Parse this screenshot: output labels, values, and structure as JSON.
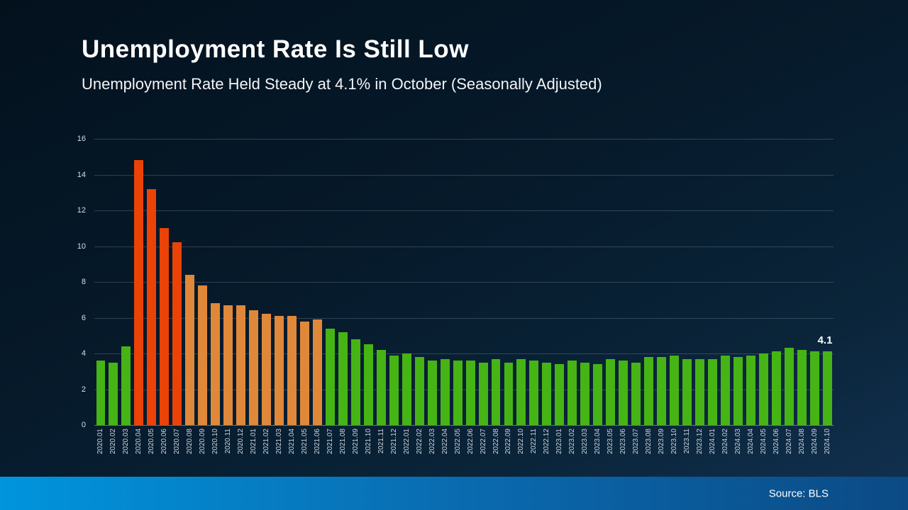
{
  "header": {
    "title": "Unemployment Rate Is Still Low",
    "subtitle": "Unemployment Rate Held Steady at 4.1% in October (Seasonally Adjusted)"
  },
  "footer": {
    "source": "Source: BLS"
  },
  "chart_data": {
    "type": "bar",
    "title": "Unemployment Rate Is Still Low",
    "subtitle": "Unemployment Rate Held Steady at 4.1% in October (Seasonally Adjusted)",
    "xlabel": "",
    "ylabel": "",
    "ylim": [
      0,
      16
    ],
    "yticks": [
      0,
      2,
      4,
      6,
      8,
      10,
      12,
      14,
      16
    ],
    "grid": true,
    "last_value_label": "4.1",
    "palette": {
      "green": "#46b414",
      "red": "#ea4207",
      "orange": "#e0883a"
    },
    "categories": [
      "2020.01",
      "2020.02",
      "2020.03",
      "2020.04",
      "2020.05",
      "2020.06",
      "2020.07",
      "2020.08",
      "2020.09",
      "2020.10",
      "2020.11",
      "2020.12",
      "2021.01",
      "2021.02",
      "2021.03",
      "2021.04",
      "2021.05",
      "2021.06",
      "2021.07",
      "2021.08",
      "2021.09",
      "2021.10",
      "2021.11",
      "2021.12",
      "2022.01",
      "2022.02",
      "2022.03",
      "2022.04",
      "2022.05",
      "2022.06",
      "2022.07",
      "2022.08",
      "2022.09",
      "2022.10",
      "2022.11",
      "2022.12",
      "2023.01",
      "2023.02",
      "2023.03",
      "2023.04",
      "2023.05",
      "2023.06",
      "2023.07",
      "2023.08",
      "2023.09",
      "2023.10",
      "2023.11",
      "2023.12",
      "2024.01",
      "2024.02",
      "2024.03",
      "2024.04",
      "2024.05",
      "2024.06",
      "2024.07",
      "2024.08",
      "2024.09",
      "2024.10"
    ],
    "values": [
      3.6,
      3.5,
      4.4,
      14.8,
      13.2,
      11.0,
      10.2,
      8.4,
      7.8,
      6.8,
      6.7,
      6.7,
      6.4,
      6.2,
      6.1,
      6.1,
      5.8,
      5.9,
      5.4,
      5.2,
      4.8,
      4.5,
      4.2,
      3.9,
      4.0,
      3.8,
      3.6,
      3.7,
      3.6,
      3.6,
      3.5,
      3.7,
      3.5,
      3.7,
      3.6,
      3.5,
      3.4,
      3.6,
      3.5,
      3.4,
      3.7,
      3.6,
      3.5,
      3.8,
      3.8,
      3.9,
      3.7,
      3.7,
      3.7,
      3.9,
      3.8,
      3.9,
      4.0,
      4.1,
      4.3,
      4.2,
      4.1,
      4.1
    ],
    "bar_colors": [
      "green",
      "green",
      "green",
      "red",
      "red",
      "red",
      "red",
      "orange",
      "orange",
      "orange",
      "orange",
      "orange",
      "orange",
      "orange",
      "orange",
      "orange",
      "orange",
      "orange",
      "green",
      "green",
      "green",
      "green",
      "green",
      "green",
      "green",
      "green",
      "green",
      "green",
      "green",
      "green",
      "green",
      "green",
      "green",
      "green",
      "green",
      "green",
      "green",
      "green",
      "green",
      "green",
      "green",
      "green",
      "green",
      "green",
      "green",
      "green",
      "green",
      "green",
      "green",
      "green",
      "green",
      "green",
      "green",
      "green",
      "green",
      "green",
      "green",
      "green"
    ]
  }
}
